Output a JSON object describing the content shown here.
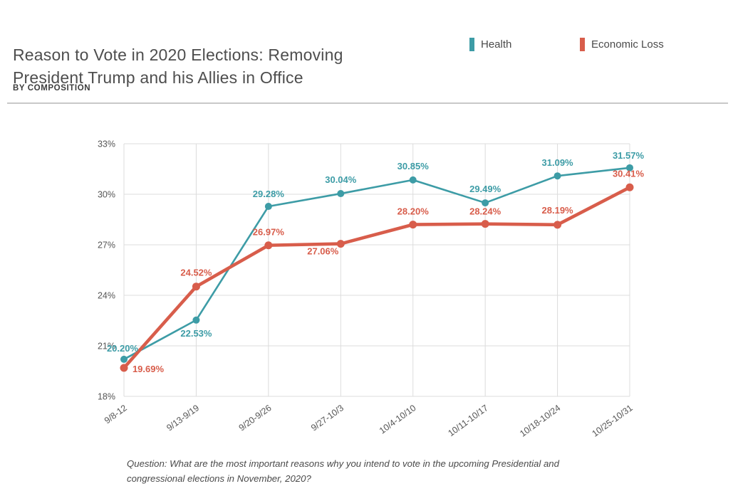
{
  "header": {
    "title_line1": "Reason to Vote in 2020 Elections: Removing",
    "title_line2": "President Trump and his Allies in Office",
    "subtitle": "BY COMPOSITION"
  },
  "legend": {
    "items": [
      {
        "label": "Health",
        "color": "#3D9CA6"
      },
      {
        "label": "Economic Loss",
        "color": "#D85D4B"
      }
    ]
  },
  "footnote": "Question: What are the most important reasons why you intend to vote in the upcoming Presidential and congressional elections in November, 2020?",
  "chart_data": {
    "type": "line",
    "title": "Reason to Vote in 2020 Elections: Removing President Trump and his Allies in Office",
    "subtitle": "BY COMPOSITION",
    "categories": [
      "9/8-12",
      "9/13-9/19",
      "9/20-9/26",
      "9/27-10/3",
      "10/4-10/10",
      "10/11-10/17",
      "10/18-10/24",
      "10/25-10/31"
    ],
    "series": [
      {
        "name": "Health",
        "color": "#3D9CA6",
        "values": [
          20.2,
          22.53,
          29.28,
          30.04,
          30.85,
          29.49,
          31.09,
          31.57
        ],
        "point_labels": [
          "20.20%",
          "22.53%",
          "29.28%",
          "30.04%",
          "30.85%",
          "29.49%",
          "31.09%",
          "31.57%"
        ],
        "line_width": 2.6,
        "marker_radius": 5,
        "label_offsets": [
          [
            -2,
            -11
          ],
          [
            0,
            23
          ],
          [
            0,
            -13
          ],
          [
            0,
            -15
          ],
          [
            0,
            -15
          ],
          [
            0,
            -15
          ],
          [
            0,
            -14
          ],
          [
            -2,
            -13
          ]
        ]
      },
      {
        "name": "Economic Loss",
        "color": "#D85D4B",
        "values": [
          19.69,
          24.52,
          26.97,
          27.06,
          28.2,
          28.24,
          28.19,
          30.41
        ],
        "point_labels": [
          "19.69%",
          "24.52%",
          "26.97%",
          "27.06%",
          "28.20%",
          "28.24%",
          "28.19%",
          "30.41%"
        ],
        "line_width": 4.6,
        "marker_radius": 5.5,
        "label_offsets": [
          [
            34,
            6
          ],
          [
            0,
            -15
          ],
          [
            0,
            -14
          ],
          [
            -25,
            15
          ],
          [
            0,
            -14
          ],
          [
            0,
            -13
          ],
          [
            0,
            -16
          ],
          [
            -2,
            -15
          ]
        ]
      }
    ],
    "ylim": [
      18,
      33
    ],
    "ytick_values": [
      18,
      21,
      24,
      27,
      30,
      33
    ],
    "ytick_labels": [
      "18%",
      "21%",
      "24%",
      "27%",
      "30%",
      "33%"
    ],
    "xlabel": "",
    "ylabel": "",
    "grid": true,
    "legend_position": "top-right",
    "x_label_rotation": -36,
    "grid_color": "#dcdcdc",
    "axis_text_color": "#555555",
    "annotation": "Question: What are the most important reasons why you intend to vote in the upcoming Presidential and congressional elections in November, 2020?"
  }
}
